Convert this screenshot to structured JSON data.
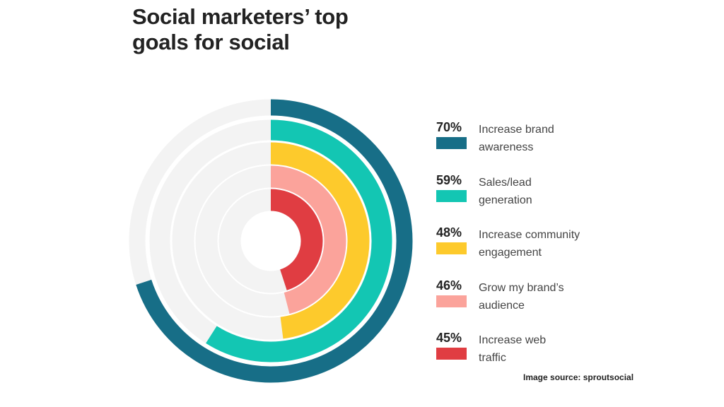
{
  "chart_data": {
    "type": "radial_bar",
    "title": "Social marketers’ top\ngoals for social",
    "categories": [
      "Increase brand\nawareness",
      "Sales/lead\ngeneration",
      "Increase community\nengagement",
      "Grow my brand’s\naudience",
      "Increase web\ntraffic"
    ],
    "values": [
      70,
      59,
      48,
      46,
      45
    ],
    "value_labels": [
      "70%",
      "59%",
      "48%",
      "46%",
      "45%"
    ],
    "colors": [
      "#176e87",
      "#13c6b3",
      "#fdca2c",
      "#fba39b",
      "#e03d42"
    ],
    "ylim": [
      0,
      100
    ],
    "source": "Image source: sproutsocial"
  }
}
